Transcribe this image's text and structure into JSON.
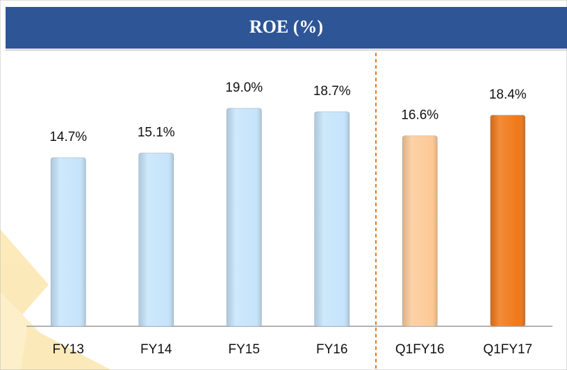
{
  "chart_data": {
    "type": "bar",
    "title": "ROE (%)",
    "categories": [
      "FY13",
      "FY14",
      "FY15",
      "FY16",
      "Q1FY16",
      "Q1FY17"
    ],
    "values": [
      14.7,
      15.1,
      19.0,
      18.7,
      16.6,
      18.4
    ],
    "value_labels": [
      "14.7%",
      "15.1%",
      "19.0%",
      "18.7%",
      "16.6%",
      "18.4%"
    ],
    "colors": [
      "#c6e4fb",
      "#c6e4fb",
      "#c6e4fb",
      "#c6e4fb",
      "#fcca98",
      "#f07818"
    ]
  }
}
